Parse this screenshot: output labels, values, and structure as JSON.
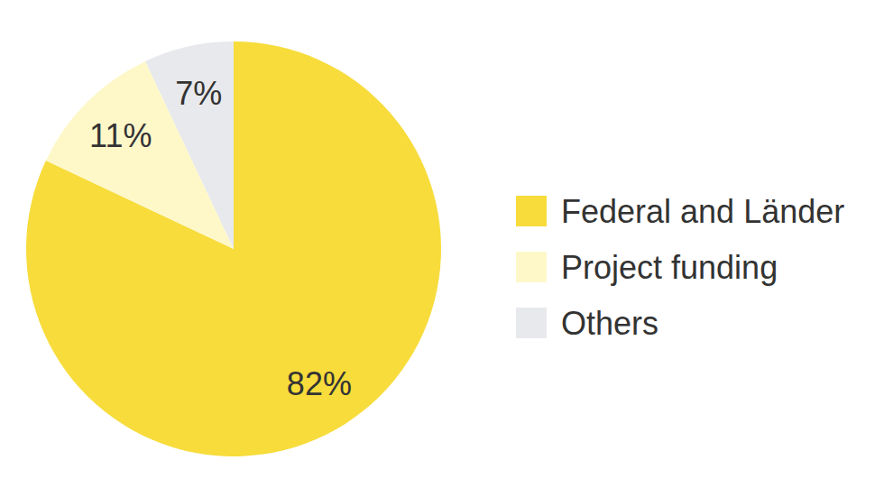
{
  "chart_data": {
    "type": "pie",
    "categories": [
      "Federal and Länder",
      "Project funding",
      "Others"
    ],
    "values": [
      82,
      11,
      7
    ],
    "value_labels": [
      "82%",
      "11%",
      "7%"
    ],
    "colors": [
      "#f7dc3b",
      "#fef8c9",
      "#e8e9ec"
    ],
    "data_labels": true,
    "legend": "right"
  }
}
